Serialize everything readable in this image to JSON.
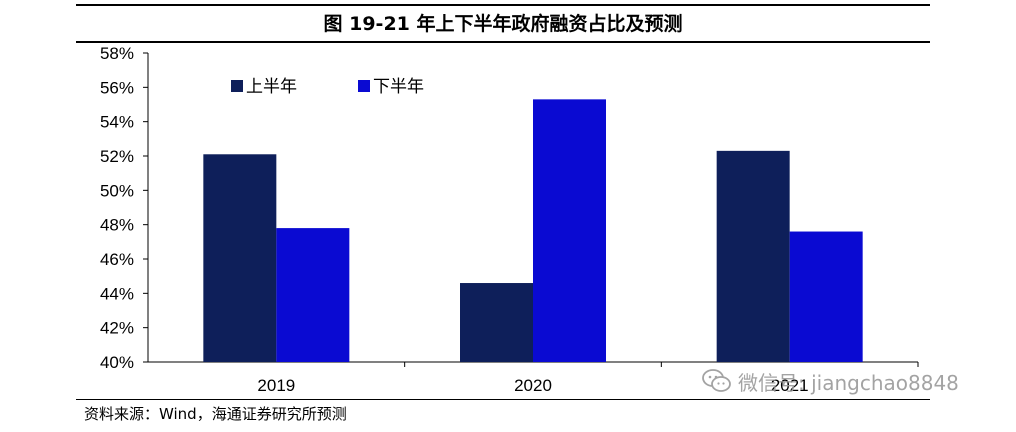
{
  "figure": {
    "title": "图 19-21 年上下半年政府融资占比及预测",
    "source": "资料来源：Wind，海通证券研究所预测",
    "watermark": "微信号: jiangchao8848"
  },
  "colors": {
    "first_half": "#0e1f5a",
    "second_half": "#0a0ad2",
    "axis": "#000000"
  },
  "chart_data": {
    "type": "bar",
    "categories": [
      "2019",
      "2020",
      "2021"
    ],
    "series": [
      {
        "name": "上半年",
        "values": [
          52.1,
          44.6,
          52.3
        ]
      },
      {
        "name": "下半年",
        "values": [
          47.8,
          55.3,
          47.6
        ]
      }
    ],
    "ylim": [
      40,
      58
    ],
    "yticks": [
      40,
      42,
      44,
      46,
      48,
      50,
      52,
      54,
      56,
      58
    ],
    "ytick_labels": [
      "40%",
      "42%",
      "44%",
      "46%",
      "48%",
      "50%",
      "52%",
      "54%",
      "56%",
      "58%"
    ],
    "xlabel": "",
    "ylabel": "",
    "grid": false,
    "legend_position": "top-left"
  }
}
